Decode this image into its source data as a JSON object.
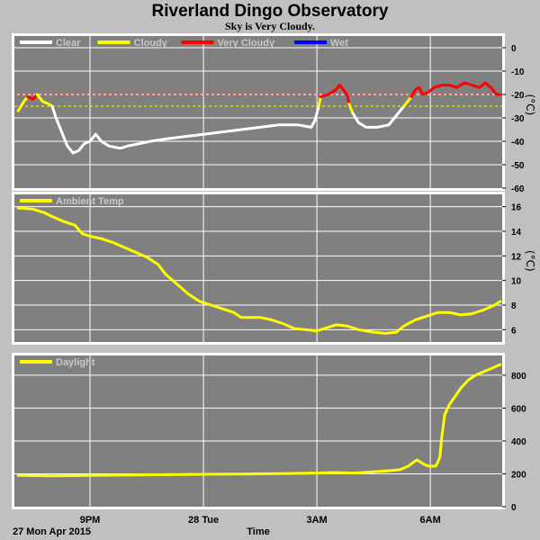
{
  "header": {
    "title": "Riverland Dingo Observatory",
    "subtitle": "Sky is Very Cloudy."
  },
  "footer": {
    "date_label": "27 Mon Apr 2015",
    "time_label": "Time"
  },
  "colors": {
    "background": "#c0c0c0",
    "plot_bg": "#808080",
    "grid": "#ffffff",
    "clear": "#ffffff",
    "cloudy": "#ffff00",
    "very_cloudy": "#ff0000",
    "wet": "#0000ff",
    "ambient": "#ffff00",
    "daylight": "#ffff00"
  },
  "chart_data": [
    {
      "type": "line",
      "panel": "sky",
      "unit_label": "(°C)",
      "ylim": [
        -60,
        5
      ],
      "yticks": [
        "0",
        "-10",
        "-20",
        "-30",
        "-40",
        "-50",
        "-60"
      ],
      "ytick_values": [
        0,
        -10,
        -20,
        -30,
        -40,
        -50,
        -60
      ],
      "xlim": [
        19.0,
        31.9
      ],
      "xticks": [
        "9PM",
        "28 Tue",
        "3AM",
        "6AM"
      ],
      "xtick_values": [
        21,
        24,
        27,
        30
      ],
      "grid": true,
      "legend": [
        {
          "name": "Clear",
          "color": "#ffffff"
        },
        {
          "name": "Cloudy",
          "color": "#ffff00"
        },
        {
          "name": "Very Cloudy",
          "color": "#ff0000"
        },
        {
          "name": "Wet",
          "color": "#0000ff"
        }
      ],
      "thresholds": [
        {
          "value": -20,
          "color": "#ff4040"
        },
        {
          "value": -25,
          "color": "#ffff00"
        }
      ],
      "series": [
        {
          "name": "Cloudy",
          "color": "#ffff00",
          "points": [
            [
              19.1,
              -27
            ],
            [
              19.25,
              -23
            ],
            [
              19.35,
              -21
            ]
          ]
        },
        {
          "name": "Very Cloudy",
          "color": "#ff0000",
          "points": [
            [
              19.35,
              -21
            ],
            [
              19.5,
              -22
            ],
            [
              19.6,
              -20
            ]
          ]
        },
        {
          "name": "Cloudy",
          "color": "#ffff00",
          "points": [
            [
              19.6,
              -20
            ],
            [
              19.75,
              -23
            ],
            [
              19.9,
              -24
            ],
            [
              20.0,
              -25
            ]
          ]
        },
        {
          "name": "Clear",
          "color": "#ffffff",
          "points": [
            [
              20.0,
              -25
            ],
            [
              20.1,
              -30
            ],
            [
              20.25,
              -36
            ],
            [
              20.4,
              -42
            ],
            [
              20.55,
              -45
            ],
            [
              20.7,
              -44
            ],
            [
              20.85,
              -41
            ],
            [
              21.0,
              -40
            ],
            [
              21.15,
              -37
            ],
            [
              21.3,
              -40
            ],
            [
              21.5,
              -42
            ],
            [
              21.8,
              -43
            ],
            [
              22.0,
              -42
            ],
            [
              22.3,
              -41
            ],
            [
              22.6,
              -40
            ],
            [
              23.0,
              -39
            ],
            [
              23.5,
              -38
            ],
            [
              24.0,
              -37
            ],
            [
              24.5,
              -36
            ],
            [
              25.0,
              -35
            ],
            [
              25.5,
              -34
            ],
            [
              26.0,
              -33
            ],
            [
              26.5,
              -33
            ],
            [
              26.85,
              -34
            ],
            [
              26.95,
              -31
            ],
            [
              27.05,
              -25
            ]
          ]
        },
        {
          "name": "Cloudy",
          "color": "#ffff00",
          "points": [
            [
              27.05,
              -25
            ],
            [
              27.1,
              -21
            ]
          ]
        },
        {
          "name": "Very Cloudy",
          "color": "#ff0000",
          "points": [
            [
              27.1,
              -21
            ],
            [
              27.3,
              -20
            ],
            [
              27.5,
              -18
            ],
            [
              27.6,
              -16
            ],
            [
              27.7,
              -18
            ],
            [
              27.8,
              -20
            ],
            [
              27.85,
              -24
            ]
          ]
        },
        {
          "name": "Cloudy",
          "color": "#ffff00",
          "points": [
            [
              27.85,
              -24
            ],
            [
              27.95,
              -28
            ]
          ]
        },
        {
          "name": "Clear",
          "color": "#ffffff",
          "points": [
            [
              27.95,
              -28
            ],
            [
              28.1,
              -32
            ],
            [
              28.3,
              -34
            ],
            [
              28.6,
              -34
            ],
            [
              28.9,
              -33
            ],
            [
              29.05,
              -30
            ],
            [
              29.2,
              -27
            ],
            [
              29.3,
              -25
            ]
          ]
        },
        {
          "name": "Cloudy",
          "color": "#ffff00",
          "points": [
            [
              29.3,
              -25
            ],
            [
              29.45,
              -22
            ],
            [
              29.5,
              -21
            ]
          ]
        },
        {
          "name": "Very Cloudy",
          "color": "#ff0000",
          "points": [
            [
              29.5,
              -21
            ],
            [
              29.6,
              -18
            ],
            [
              29.7,
              -17
            ],
            [
              29.8,
              -20
            ],
            [
              29.95,
              -19
            ],
            [
              30.1,
              -17
            ],
            [
              30.3,
              -16
            ],
            [
              30.5,
              -16
            ],
            [
              30.7,
              -17
            ],
            [
              30.9,
              -15
            ],
            [
              31.1,
              -16
            ],
            [
              31.3,
              -17
            ],
            [
              31.45,
              -15
            ],
            [
              31.6,
              -17
            ],
            [
              31.75,
              -20
            ],
            [
              31.85,
              -20
            ]
          ]
        }
      ]
    },
    {
      "type": "line",
      "panel": "ambient",
      "unit_label": "(°C)",
      "ylim": [
        5,
        17
      ],
      "yticks": [
        "16",
        "14",
        "12",
        "10",
        "8",
        "6"
      ],
      "ytick_values": [
        16,
        14,
        12,
        10,
        8,
        6
      ],
      "xlim": [
        19.0,
        31.9
      ],
      "xtick_values": [
        21,
        24,
        27,
        30
      ],
      "grid": true,
      "legend": [
        {
          "name": "Ambient Temp",
          "color": "#ffff00"
        }
      ],
      "series": [
        {
          "name": "Ambient Temp",
          "color": "#ffff00",
          "points": [
            [
              19.1,
              15.9
            ],
            [
              19.5,
              15.8
            ],
            [
              19.8,
              15.5
            ],
            [
              20.0,
              15.2
            ],
            [
              20.3,
              14.8
            ],
            [
              20.6,
              14.5
            ],
            [
              20.8,
              13.8
            ],
            [
              21.0,
              13.6
            ],
            [
              21.3,
              13.4
            ],
            [
              21.6,
              13.1
            ],
            [
              21.9,
              12.7
            ],
            [
              22.2,
              12.3
            ],
            [
              22.5,
              11.9
            ],
            [
              22.8,
              11.3
            ],
            [
              23.0,
              10.5
            ],
            [
              23.3,
              9.7
            ],
            [
              23.6,
              8.9
            ],
            [
              23.9,
              8.3
            ],
            [
              24.2,
              8.0
            ],
            [
              24.5,
              7.7
            ],
            [
              24.8,
              7.4
            ],
            [
              25.0,
              7.0
            ],
            [
              25.5,
              7.0
            ],
            [
              25.8,
              6.8
            ],
            [
              26.1,
              6.5
            ],
            [
              26.4,
              6.1
            ],
            [
              26.7,
              6.0
            ],
            [
              27.0,
              5.9
            ],
            [
              27.2,
              6.1
            ],
            [
              27.5,
              6.4
            ],
            [
              27.8,
              6.3
            ],
            [
              28.1,
              6.0
            ],
            [
              28.5,
              5.8
            ],
            [
              28.8,
              5.7
            ],
            [
              29.1,
              5.8
            ],
            [
              29.3,
              6.3
            ],
            [
              29.6,
              6.8
            ],
            [
              29.9,
              7.1
            ],
            [
              30.2,
              7.4
            ],
            [
              30.5,
              7.4
            ],
            [
              30.8,
              7.2
            ],
            [
              31.1,
              7.3
            ],
            [
              31.4,
              7.6
            ],
            [
              31.7,
              8.0
            ],
            [
              31.85,
              8.3
            ]
          ]
        }
      ]
    },
    {
      "type": "line",
      "panel": "daylight",
      "ylim": [
        0,
        920
      ],
      "yticks": [
        "800",
        "600",
        "400",
        "200",
        "0"
      ],
      "ytick_values": [
        800,
        600,
        400,
        200,
        0
      ],
      "xlim": [
        19.0,
        31.9
      ],
      "xtick_values": [
        21,
        24,
        27,
        30
      ],
      "grid": true,
      "legend": [
        {
          "name": "Daylight",
          "color": "#ffff00"
        }
      ],
      "series": [
        {
          "name": "Daylight",
          "color": "#ffff00",
          "points": [
            [
              19.1,
              190
            ],
            [
              20.0,
              188
            ],
            [
              21.0,
              190
            ],
            [
              22.0,
              192
            ],
            [
              23.0,
              195
            ],
            [
              24.0,
              197
            ],
            [
              25.0,
              199
            ],
            [
              26.0,
              201
            ],
            [
              27.0,
              205
            ],
            [
              27.5,
              208
            ],
            [
              28.0,
              205
            ],
            [
              28.5,
              212
            ],
            [
              29.0,
              220
            ],
            [
              29.2,
              225
            ],
            [
              29.4,
              245
            ],
            [
              29.55,
              270
            ],
            [
              29.65,
              285
            ],
            [
              29.75,
              270
            ],
            [
              29.85,
              255
            ],
            [
              30.0,
              245
            ],
            [
              30.15,
              248
            ],
            [
              30.25,
              300
            ],
            [
              30.3,
              420
            ],
            [
              30.38,
              560
            ],
            [
              30.5,
              620
            ],
            [
              30.65,
              670
            ],
            [
              30.8,
              720
            ],
            [
              31.0,
              770
            ],
            [
              31.2,
              800
            ],
            [
              31.45,
              825
            ],
            [
              31.65,
              845
            ],
            [
              31.85,
              865
            ]
          ]
        }
      ]
    }
  ]
}
